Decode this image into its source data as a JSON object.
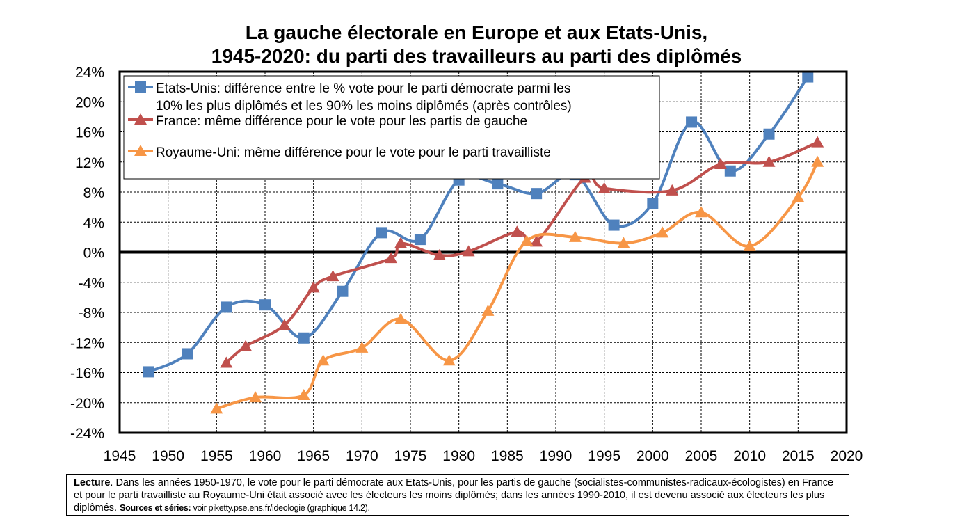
{
  "title": {
    "line1": "La gauche électorale en Europe et aux Etats-Unis,",
    "line2": "1945-2020:  du parti des travailleurs au parti des diplômés"
  },
  "chart_data": {
    "type": "line",
    "title": "La gauche électorale en Europe et aux Etats-Unis, 1945-2020:  du parti des travailleurs au parti des diplômés",
    "xlabel": "",
    "ylabel": "",
    "xlim": [
      1945,
      2020
    ],
    "ylim": [
      -24,
      24
    ],
    "x_ticks": [
      "1945",
      "1950",
      "1955",
      "1960",
      "1965",
      "1970",
      "1975",
      "1980",
      "1985",
      "1990",
      "1995",
      "2000",
      "2005",
      "2010",
      "2015",
      "2020"
    ],
    "y_ticks": [
      "24%",
      "20%",
      "16%",
      "12%",
      "8%",
      "4%",
      "0%",
      "-4%",
      "-8%",
      "-12%",
      "-16%",
      "-20%",
      "-24%"
    ],
    "grid": true,
    "legend_position": "top-left",
    "series": [
      {
        "name": "Etats-Unis: différence entre le % vote pour le parti démocrate parmi les 10% les plus diplômés et les 90% les moins diplômés (après contrôles)",
        "legend_line1": "Etats-Unis: différence entre le % vote pour le parti démocrate parmi les",
        "legend_line2": "10% les plus diplômés et les 90% les moins diplômés (après contrôles)",
        "color": "#4f81bd",
        "marker": "square",
        "x": [
          1948,
          1952,
          1956,
          1960,
          1964,
          1968,
          1972,
          1976,
          1980,
          1984,
          1988,
          1992,
          1996,
          2000,
          2004,
          2008,
          2012,
          2016
        ],
        "y": [
          -15.9,
          -13.5,
          -7.3,
          -7.0,
          -11.4,
          -5.2,
          2.6,
          1.7,
          9.6,
          9.1,
          7.8,
          10.3,
          3.6,
          6.5,
          17.3,
          10.8,
          15.7,
          23.3
        ]
      },
      {
        "name": "France: même différence pour le vote pour les partis de gauche",
        "legend_line1": "France: même différence pour le vote pour les partis de gauche",
        "color": "#c0504d",
        "marker": "triangle",
        "x": [
          1956,
          1958,
          1962,
          1965,
          1967,
          1973,
          1974,
          1978,
          1981,
          1986,
          1988,
          1993,
          1995,
          2002,
          2007,
          2012,
          2017
        ],
        "y": [
          -14.7,
          -12.5,
          -9.7,
          -4.7,
          -3.2,
          -0.8,
          1.2,
          -0.4,
          0.1,
          2.7,
          1.4,
          9.9,
          8.5,
          8.2,
          11.7,
          12.0,
          14.6
        ]
      },
      {
        "name": "Royaume-Uni: même différence pour le vote pour le parti travailliste",
        "legend_line1": "Royaume-Uni: même différence pour le vote pour le parti travailliste",
        "color": "#f79646",
        "marker": "triangle",
        "x": [
          1955,
          1959,
          1964,
          1966,
          1970,
          1974,
          1979,
          1983,
          1987,
          1992,
          1997,
          2001,
          2005,
          2010,
          2015,
          2017
        ],
        "y": [
          -20.8,
          -19.3,
          -19.0,
          -14.4,
          -12.7,
          -8.9,
          -14.4,
          -7.8,
          1.5,
          2.0,
          1.2,
          2.6,
          5.3,
          0.8,
          7.3,
          12.0
        ]
      }
    ]
  },
  "note": {
    "bold_label": "Lecture",
    "text": ". Dans les années 1950-1970, le vote pour le parti démocrate aux Etats-Unis, pour les partis de gauche (socialistes-communistes-radicaux-écologistes) en France et pour le parti travailliste au Royaume-Uni était associé avec les électeurs les moins diplômés; dans les années 1990-2010, il est devenu associé aux électeurs les plus diplômés. ",
    "sources_label": "Sources et séries:",
    "sources_text": " voir piketty.pse.ens.fr/ideologie (graphique 14.2)."
  }
}
